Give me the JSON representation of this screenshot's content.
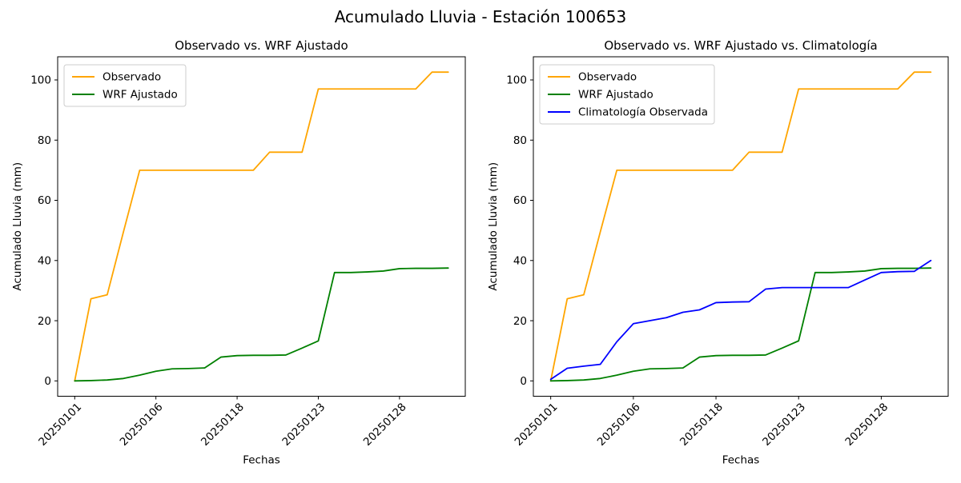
{
  "figure": {
    "title": "Acumulado Lluvia - Estación 100653",
    "background": "#ffffff",
    "text_color": "#000000",
    "spine_color": "#000000"
  },
  "chart_data": [
    {
      "type": "line",
      "title": "Observado vs. WRF Ajustado",
      "xlabel": "Fechas",
      "ylabel": "Acumulado Lluvia (mm)",
      "grid": false,
      "legend_position": "upper-left",
      "x_index_count": 24,
      "x_tick_positions": [
        0,
        5,
        10,
        15,
        20
      ],
      "x_tick_labels": [
        "20250101",
        "20250106",
        "20250118",
        "20250123",
        "20250128"
      ],
      "y_ticks": [
        0,
        20,
        40,
        60,
        80,
        100
      ],
      "xlim": [
        -1.05,
        24.05
      ],
      "ylim": [
        -5.1,
        107.7
      ],
      "series": [
        {
          "name": "Observado",
          "color": "#FFA500",
          "values": [
            0,
            27.3,
            28.6,
            49.5,
            70,
            70,
            70,
            70,
            70,
            70,
            70,
            70,
            76,
            76,
            76,
            97,
            97,
            97,
            97,
            97,
            97,
            97,
            102.6,
            102.6
          ]
        },
        {
          "name": "WRF Ajustado",
          "color": "#008000",
          "values": [
            0,
            0.1,
            0.3,
            0.8,
            1.9,
            3.2,
            4,
            4.1,
            4.3,
            7.9,
            8.4,
            8.5,
            8.5,
            8.6,
            10.9,
            13.3,
            36,
            36,
            36.2,
            36.5,
            37.3,
            37.4,
            37.4,
            37.5
          ]
        }
      ]
    },
    {
      "type": "line",
      "title": "Observado vs. WRF Ajustado vs. Climatología",
      "xlabel": "Fechas",
      "ylabel": "Acumulado Lluvia (mm)",
      "grid": false,
      "legend_position": "upper-left",
      "x_index_count": 24,
      "x_tick_positions": [
        0,
        5,
        10,
        15,
        20
      ],
      "x_tick_labels": [
        "20250101",
        "20250106",
        "20250118",
        "20250123",
        "20250128"
      ],
      "y_ticks": [
        0,
        20,
        40,
        60,
        80,
        100
      ],
      "xlim": [
        -1.05,
        24.05
      ],
      "ylim": [
        -5.1,
        107.7
      ],
      "series": [
        {
          "name": "Observado",
          "color": "#FFA500",
          "values": [
            0,
            27.3,
            28.6,
            49.5,
            70,
            70,
            70,
            70,
            70,
            70,
            70,
            70,
            76,
            76,
            76,
            97,
            97,
            97,
            97,
            97,
            97,
            97,
            102.6,
            102.6
          ]
        },
        {
          "name": "WRF Ajustado",
          "color": "#008000",
          "values": [
            0,
            0.1,
            0.3,
            0.8,
            1.9,
            3.2,
            4,
            4.1,
            4.3,
            7.9,
            8.4,
            8.5,
            8.5,
            8.6,
            10.9,
            13.3,
            36,
            36,
            36.2,
            36.5,
            37.3,
            37.4,
            37.4,
            37.5
          ]
        },
        {
          "name": "Climatología Observada",
          "color": "#0000FF",
          "values": [
            0.5,
            4.2,
            4.9,
            5.5,
            13,
            19,
            20,
            21,
            22.8,
            23.6,
            26,
            26.2,
            26.3,
            30.5,
            31,
            31,
            31,
            31,
            31,
            33.5,
            36,
            36.3,
            36.4,
            40
          ]
        }
      ]
    }
  ]
}
